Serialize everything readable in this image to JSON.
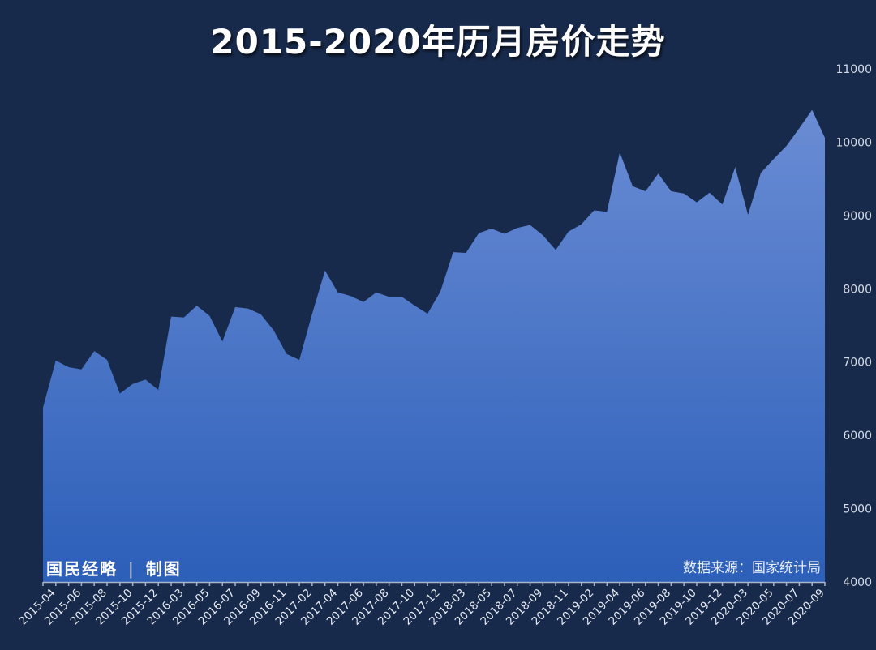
{
  "title": "2015-2020年历月房价走势",
  "credit": {
    "org": "国民经略",
    "separator": "|",
    "suffix": "制图"
  },
  "source": "数据来源：国家统计局",
  "colors": {
    "background": "#182a4b",
    "fill_top": "#6a8cd4",
    "fill_bottom": "#2c5fb9",
    "text": "#ffffff"
  },
  "chart_data": {
    "type": "area",
    "title": "2015-2020年历月房价走势",
    "xlabel": "",
    "ylabel": "",
    "ylim": [
      4000,
      11000
    ],
    "yticks": [
      4000,
      5000,
      6000,
      7000,
      8000,
      9000,
      10000,
      11000
    ],
    "y_axis_position": "right",
    "grid": false,
    "legend": "none",
    "x_tick_labels": [
      "2015-04",
      "2015-06",
      "2015-08",
      "2015-10",
      "2015-12",
      "2016-03",
      "2016-05",
      "2016-07",
      "2016-09",
      "2016-11",
      "2017-02",
      "2017-04",
      "2017-06",
      "2017-08",
      "2017-10",
      "2017-12",
      "2018-03",
      "2018-05",
      "2018-07",
      "2018-09",
      "2018-11",
      "2019-02",
      "2019-04",
      "2019-06",
      "2019-08",
      "2019-10",
      "2019-12",
      "2020-03",
      "2020-05",
      "2020-07",
      "2020-09"
    ],
    "values": [
      6380,
      7020,
      6930,
      6900,
      7150,
      7030,
      6570,
      6700,
      6760,
      6620,
      7620,
      7610,
      7770,
      7630,
      7280,
      7750,
      7730,
      7650,
      7430,
      7110,
      7030,
      7660,
      8250,
      7950,
      7900,
      7820,
      7950,
      7890,
      7890,
      7770,
      7660,
      7960,
      8500,
      8490,
      8760,
      8820,
      8750,
      8830,
      8870,
      8730,
      8530,
      8780,
      8880,
      9070,
      9050,
      9860,
      9400,
      9330,
      9570,
      9330,
      9300,
      9180,
      9310,
      9150,
      9660,
      9010,
      9580,
      9770,
      9950,
      10190,
      10440,
      10060
    ]
  }
}
